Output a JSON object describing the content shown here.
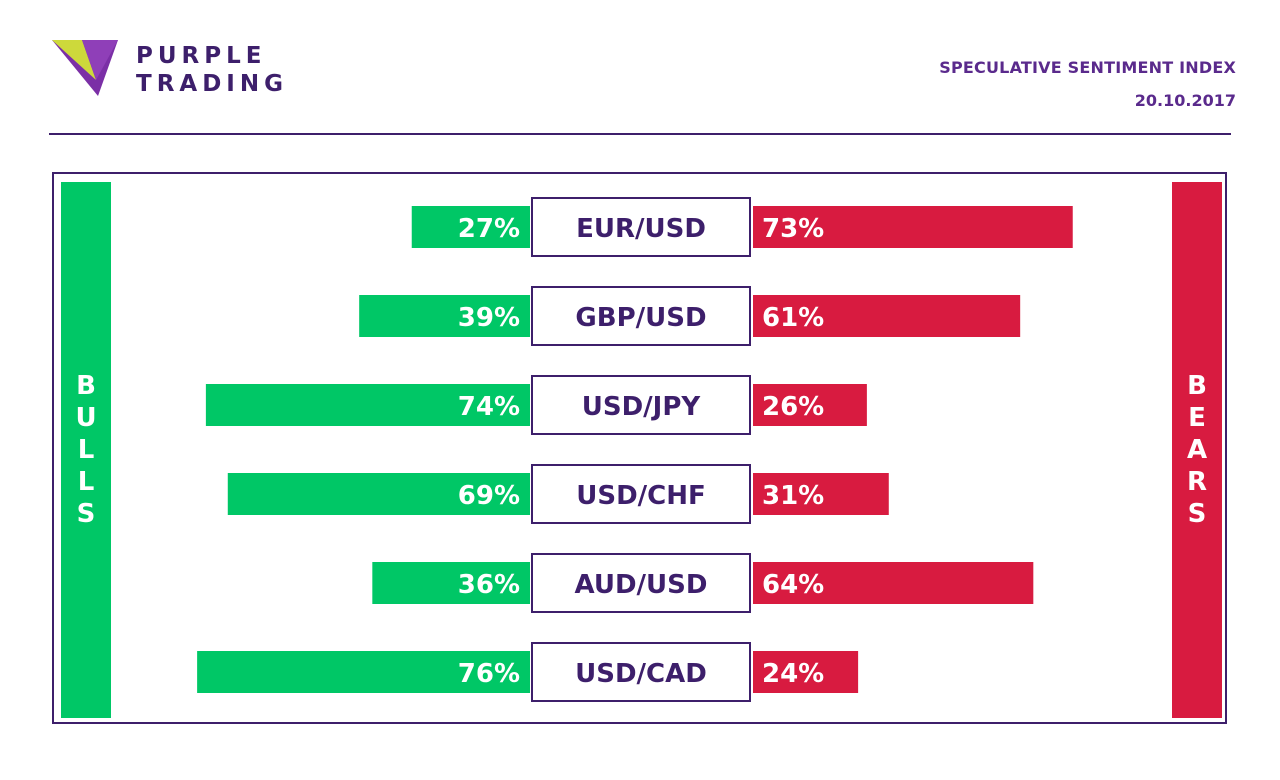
{
  "brand": {
    "line1": "PURPLE",
    "line2": "TRADING",
    "logo_icon": "purple-trading-triangle-logo",
    "colors": {
      "purple": "#3d1f6b",
      "accent_purple": "#7b2fa6",
      "yellow_green": "#d2e335"
    }
  },
  "header": {
    "title": "SPECULATIVE SENTIMENT INDEX",
    "date": "20.10.2017"
  },
  "sides": {
    "bulls_letters": [
      "B",
      "U",
      "L",
      "L",
      "S"
    ],
    "bears_letters": [
      "B",
      "E",
      "A",
      "R",
      "S"
    ]
  },
  "colors": {
    "bulls": "#00c766",
    "bears": "#d81b40",
    "text": "#3d1f6b",
    "label_text": "#ffffff"
  },
  "chart_data": {
    "type": "bar",
    "categories": [
      "EUR/USD",
      "GBP/USD",
      "USD/JPY",
      "USD/CHF",
      "AUD/USD",
      "USD/CAD"
    ],
    "series": [
      {
        "name": "BULLS",
        "values": [
          27,
          39,
          74,
          69,
          36,
          76
        ],
        "labels": [
          "27%",
          "39%",
          "74%",
          "69%",
          "36%",
          "76%"
        ]
      },
      {
        "name": "BEARS",
        "values": [
          73,
          61,
          26,
          31,
          64,
          24
        ],
        "labels": [
          "73%",
          "61%",
          "26%",
          "31%",
          "64%",
          "24%"
        ]
      }
    ],
    "unit": "%",
    "ylim": [
      0,
      100
    ]
  }
}
